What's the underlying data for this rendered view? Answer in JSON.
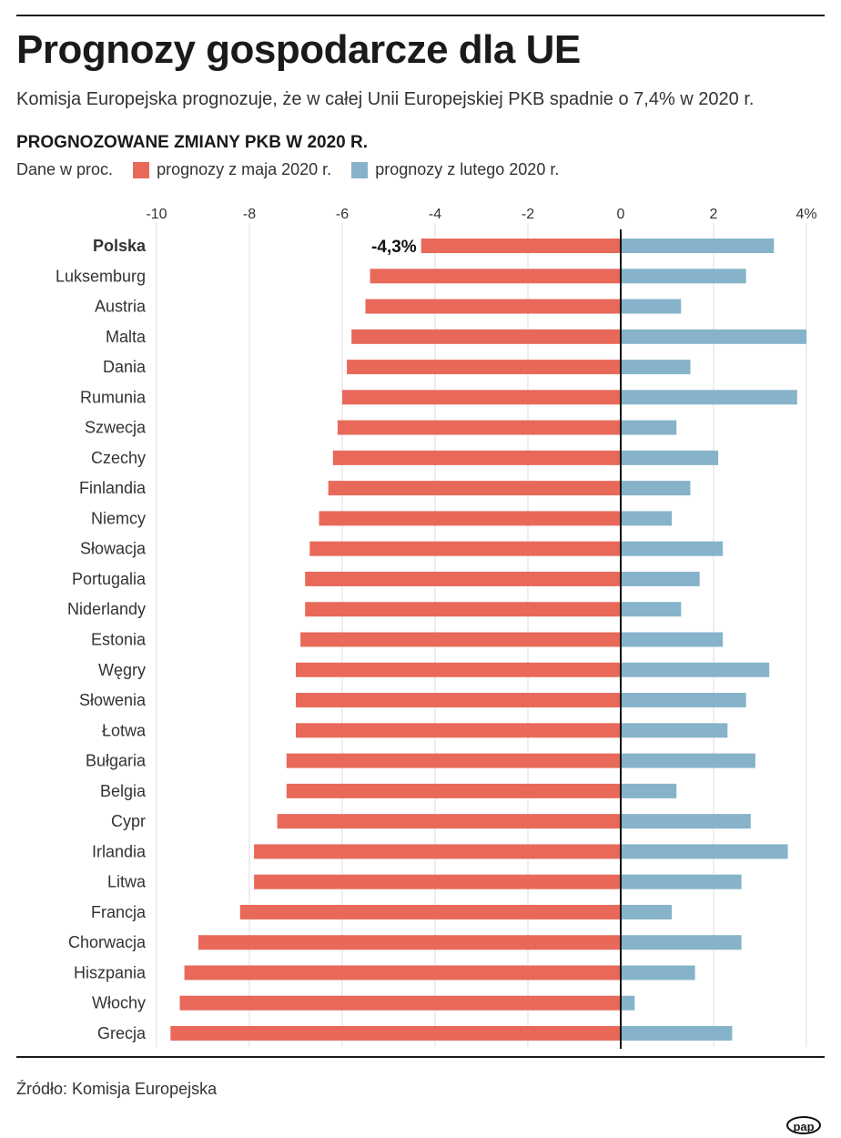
{
  "title": "Prognozy gospodarcze dla UE",
  "subtitle": "Komisja Europejska prognozuje, że w całej Unii Europejskiej PKB spadnie o 7,4% w 2020 r.",
  "source": "Źródło: Komisja Europejska",
  "logo": "pap",
  "chart_data": {
    "type": "bar",
    "orientation": "horizontal",
    "title": "PROGNOZOWANE ZMIANY PKB W 2020 R.",
    "unit_note": "Dane w proc.",
    "xlim": [
      -10,
      4
    ],
    "ticks": [
      -10,
      -8,
      -6,
      -4,
      -2,
      0,
      2,
      4
    ],
    "tick_labels": [
      "-10",
      "-8",
      "-6",
      "-4",
      "-2",
      "0",
      "2",
      "4%"
    ],
    "grid": true,
    "legend_position": "top-left",
    "highlight": {
      "category": "Polska",
      "label": "-4,3%"
    },
    "categories": [
      "Polska",
      "Luksemburg",
      "Austria",
      "Malta",
      "Dania",
      "Rumunia",
      "Szwecja",
      "Czechy",
      "Finlandia",
      "Niemcy",
      "Słowacja",
      "Portugalia",
      "Niderlandy",
      "Estonia",
      "Węgry",
      "Słowenia",
      "Łotwa",
      "Bułgaria",
      "Belgia",
      "Cypr",
      "Irlandia",
      "Litwa",
      "Francja",
      "Chorwacja",
      "Hiszpania",
      "Włochy",
      "Grecja"
    ],
    "series": [
      {
        "name": "prognozy z maja 2020 r.",
        "color": "#E8695A",
        "values": [
          -4.3,
          -5.4,
          -5.5,
          -5.8,
          -5.9,
          -6.0,
          -6.1,
          -6.2,
          -6.3,
          -6.5,
          -6.7,
          -6.8,
          -6.8,
          -6.9,
          -7.0,
          -7.0,
          -7.0,
          -7.2,
          -7.2,
          -7.4,
          -7.9,
          -7.9,
          -8.2,
          -9.1,
          -9.4,
          -9.5,
          -9.7
        ]
      },
      {
        "name": "prognozy z lutego 2020 r.",
        "color": "#86B3CA",
        "values": [
          3.3,
          2.7,
          1.3,
          4.0,
          1.5,
          3.8,
          1.2,
          2.1,
          1.5,
          1.1,
          2.2,
          1.7,
          1.3,
          2.2,
          3.2,
          2.7,
          2.3,
          2.9,
          1.2,
          2.8,
          3.6,
          2.6,
          1.1,
          2.6,
          1.6,
          0.3,
          2.4
        ]
      }
    ]
  }
}
